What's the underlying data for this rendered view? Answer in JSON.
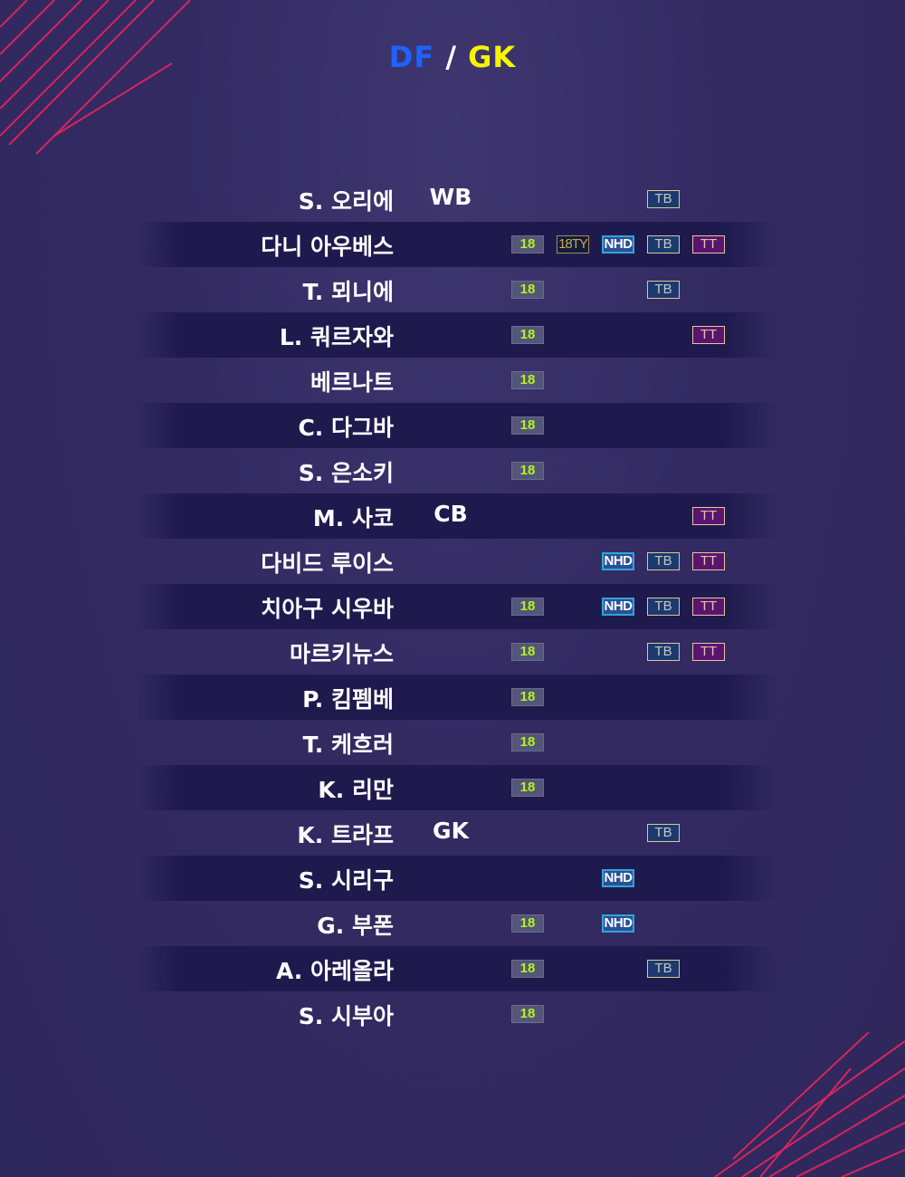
{
  "title": {
    "left": "DF",
    "sep": "/",
    "right": "GK",
    "left_color": "#1e62ff",
    "right_color": "#f5f500"
  },
  "badges": {
    "b18": "18",
    "bty": "18TY",
    "bnhd": "NHD",
    "btb": "TB",
    "btt": "TT"
  },
  "players": [
    {
      "name": "S. 오리에",
      "pos": "WB",
      "badges": [
        "btb"
      ]
    },
    {
      "name": "다니 아우베스",
      "pos": "",
      "badges": [
        "b18",
        "bty",
        "bnhd",
        "btb",
        "btt"
      ]
    },
    {
      "name": "T. 뫼니에",
      "pos": "",
      "badges": [
        "b18",
        "btb"
      ]
    },
    {
      "name": "L. 쿼르자와",
      "pos": "",
      "badges": [
        "b18",
        "btt"
      ]
    },
    {
      "name": "베르나트",
      "pos": "",
      "badges": [
        "b18"
      ]
    },
    {
      "name": "C. 다그바",
      "pos": "",
      "badges": [
        "b18"
      ]
    },
    {
      "name": "S. 은소키",
      "pos": "",
      "badges": [
        "b18"
      ]
    },
    {
      "name": "M. 사코",
      "pos": "CB",
      "badges": [
        "btt"
      ]
    },
    {
      "name": "다비드 루이스",
      "pos": "",
      "badges": [
        "bnhd",
        "btb",
        "btt"
      ]
    },
    {
      "name": "치아구 시우바",
      "pos": "",
      "badges": [
        "b18",
        "bnhd",
        "btb",
        "btt"
      ]
    },
    {
      "name": "마르키뉴스",
      "pos": "",
      "badges": [
        "b18",
        "btb",
        "btt"
      ]
    },
    {
      "name": "P. 킴펨베",
      "pos": "",
      "badges": [
        "b18"
      ]
    },
    {
      "name": "T. 케흐러",
      "pos": "",
      "badges": [
        "b18"
      ]
    },
    {
      "name": "K. 리만",
      "pos": "",
      "badges": [
        "b18"
      ]
    },
    {
      "name": "K. 트라프",
      "pos": "GK",
      "badges": [
        "btb"
      ]
    },
    {
      "name": "S. 시리구",
      "pos": "",
      "badges": [
        "bnhd"
      ]
    },
    {
      "name": "G. 부폰",
      "pos": "",
      "badges": [
        "b18",
        "bnhd"
      ]
    },
    {
      "name": "A. 아레올라",
      "pos": "",
      "badges": [
        "b18",
        "btb"
      ]
    },
    {
      "name": "S. 시부아",
      "pos": "",
      "badges": [
        "b18"
      ]
    }
  ]
}
